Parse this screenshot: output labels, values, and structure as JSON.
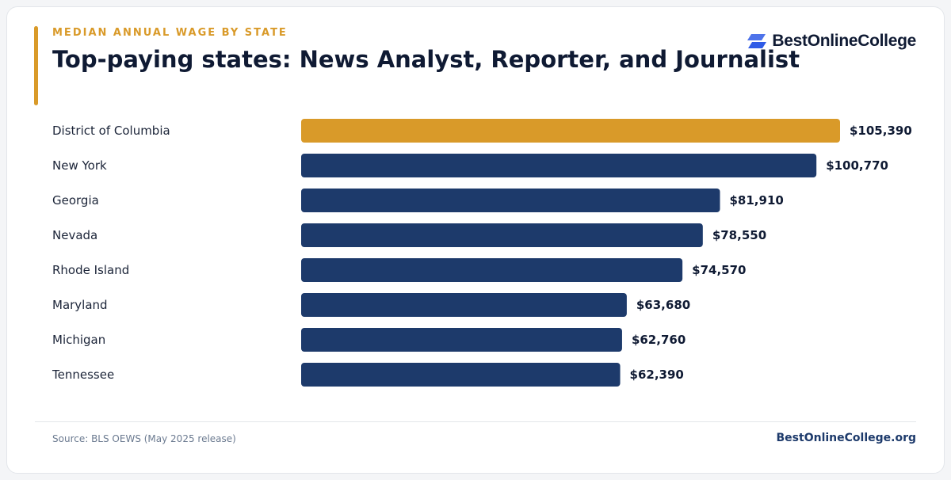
{
  "eyebrow": "MEDIAN ANNUAL WAGE BY STATE",
  "title": "Top-paying states: News Analyst, Reporter, and Journalist",
  "logo": {
    "text": "BestOnlineCollege",
    "icon": "stacked-parallelogram-logo-icon"
  },
  "source": "Source: BLS OEWS (May 2025 release)",
  "footer_brand": "BestOnlineCollege.org",
  "colors": {
    "accent": "#d99a29",
    "bar": "#1d3a6b",
    "logo_blue": "#2f5be6"
  },
  "chart_data": {
    "type": "bar",
    "orientation": "horizontal",
    "categories": [
      "District of Columbia",
      "New York",
      "Georgia",
      "Nevada",
      "Rhode Island",
      "Maryland",
      "Michigan",
      "Tennessee"
    ],
    "values": [
      105390,
      100770,
      81910,
      78550,
      74570,
      63680,
      62760,
      62390
    ],
    "value_labels": [
      "$105,390",
      "$100,770",
      "$81,910",
      "$78,550",
      "$74,570",
      "$63,680",
      "$62,760",
      "$62,390"
    ],
    "highlight_index": 0,
    "xlim": [
      0,
      105390
    ],
    "grid": false,
    "legend": "none"
  }
}
